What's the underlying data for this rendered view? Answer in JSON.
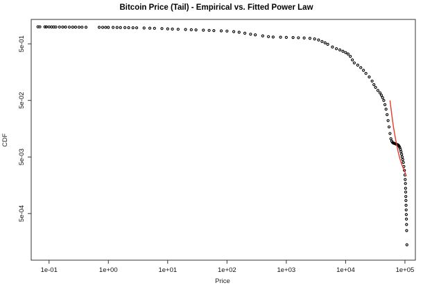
{
  "chart_data": {
    "type": "scatter",
    "title": "Bitcoin Price (Tail) - Empirical vs. Fitted Power Law",
    "xlabel": "Price",
    "ylabel": "CDF",
    "x_scale": "log",
    "y_scale": "log",
    "xlim": [
      0.05,
      150000
    ],
    "ylim": [
      7.5e-05,
      1.35
    ],
    "x_ticks": [
      {
        "value": 0.1,
        "label": "1e-01"
      },
      {
        "value": 1,
        "label": "1e+00"
      },
      {
        "value": 10,
        "label": "1e+01"
      },
      {
        "value": 100,
        "label": "1e+02"
      },
      {
        "value": 1000,
        "label": "1e+03"
      },
      {
        "value": 10000,
        "label": "1e+04"
      },
      {
        "value": 100000,
        "label": "1e+05"
      }
    ],
    "y_ticks": [
      {
        "value": 0.5,
        "label": "5e-01"
      },
      {
        "value": 0.05,
        "label": "5e-02"
      },
      {
        "value": 0.005,
        "label": "5e-03"
      },
      {
        "value": 0.0005,
        "label": "5e-04"
      }
    ],
    "grid": false,
    "series": [
      {
        "marker": "open-circle",
        "color": "#000000",
        "points": [
          [
            0.065,
            1.0
          ],
          [
            0.07,
            0.998
          ],
          [
            0.085,
            0.997
          ],
          [
            0.09,
            0.996
          ],
          [
            0.1,
            0.995
          ],
          [
            0.11,
            0.994
          ],
          [
            0.12,
            0.993
          ],
          [
            0.13,
            0.992
          ],
          [
            0.15,
            0.991
          ],
          [
            0.17,
            0.99
          ],
          [
            0.19,
            0.989
          ],
          [
            0.22,
            0.988
          ],
          [
            0.25,
            0.987
          ],
          [
            0.28,
            0.986
          ],
          [
            0.32,
            0.985
          ],
          [
            0.36,
            0.984
          ],
          [
            0.42,
            0.983
          ],
          [
            0.7,
            0.98
          ],
          [
            0.8,
            0.978
          ],
          [
            0.9,
            0.977
          ],
          [
            1.0,
            0.976
          ],
          [
            1.2,
            0.975
          ],
          [
            1.4,
            0.973
          ],
          [
            1.6,
            0.97
          ],
          [
            1.9,
            0.968
          ],
          [
            2.2,
            0.966
          ],
          [
            2.6,
            0.963
          ],
          [
            3.0,
            0.96
          ],
          [
            4.0,
            0.952
          ],
          [
            5.0,
            0.945
          ],
          [
            6.0,
            0.94
          ],
          [
            8.0,
            0.93
          ],
          [
            10.0,
            0.92
          ],
          [
            12.0,
            0.912
          ],
          [
            15.0,
            0.904
          ],
          [
            20.0,
            0.896
          ],
          [
            25.0,
            0.888
          ],
          [
            30.0,
            0.88
          ],
          [
            40.0,
            0.872
          ],
          [
            50.0,
            0.864
          ],
          [
            60.0,
            0.856
          ],
          [
            80.0,
            0.848
          ],
          [
            100.0,
            0.84
          ],
          [
            130.0,
            0.82
          ],
          [
            160.0,
            0.8
          ],
          [
            200.0,
            0.77
          ],
          [
            250.0,
            0.74
          ],
          [
            300.0,
            0.72
          ],
          [
            400.0,
            0.69
          ],
          [
            500.0,
            0.67
          ],
          [
            600.0,
            0.66
          ],
          [
            800.0,
            0.655
          ],
          [
            1000.0,
            0.65
          ],
          [
            1300.0,
            0.645
          ],
          [
            1600.0,
            0.64
          ],
          [
            2000.0,
            0.635
          ],
          [
            2500.0,
            0.625
          ],
          [
            3000.0,
            0.61
          ],
          [
            3500.0,
            0.585
          ],
          [
            4000.0,
            0.55
          ],
          [
            4500.0,
            0.52
          ],
          [
            5000.0,
            0.49
          ],
          [
            6000.0,
            0.44
          ],
          [
            7000.0,
            0.41
          ],
          [
            8000.0,
            0.39
          ],
          [
            9000.0,
            0.37
          ],
          [
            10000.0,
            0.35
          ],
          [
            11000.0,
            0.33
          ],
          [
            12000.0,
            0.3
          ],
          [
            13000.0,
            0.26
          ],
          [
            14000.0,
            0.23
          ],
          [
            16000.0,
            0.21
          ],
          [
            18000.0,
            0.19
          ],
          [
            20000.0,
            0.17
          ],
          [
            22000.0,
            0.15
          ],
          [
            25000.0,
            0.13
          ],
          [
            28000.0,
            0.11
          ],
          [
            30000.0,
            0.095
          ],
          [
            32000.0,
            0.085
          ],
          [
            35000.0,
            0.075
          ],
          [
            38000.0,
            0.068
          ],
          [
            40000.0,
            0.062
          ],
          [
            42000.0,
            0.056
          ],
          [
            44000.0,
            0.05
          ],
          [
            46000.0,
            0.042
          ],
          [
            48000.0,
            0.035
          ],
          [
            50000.0,
            0.028
          ],
          [
            52000.0,
            0.022
          ],
          [
            54000.0,
            0.017
          ],
          [
            56000.0,
            0.013
          ],
          [
            58000.0,
            0.0105
          ],
          [
            60000.0,
            0.0095
          ],
          [
            62000.0,
            0.009
          ],
          [
            64000.0,
            0.0088
          ],
          [
            66000.0,
            0.0087
          ],
          [
            68000.0,
            0.0086
          ],
          [
            70000.0,
            0.0085
          ],
          [
            72000.0,
            0.0084
          ],
          [
            74000.0,
            0.0083
          ],
          [
            76000.0,
            0.0082
          ],
          [
            78000.0,
            0.008
          ],
          [
            80000.0,
            0.0077
          ],
          [
            82000.0,
            0.0073
          ],
          [
            84000.0,
            0.0068
          ],
          [
            86000.0,
            0.0062
          ],
          [
            88000.0,
            0.0056
          ],
          [
            90000.0,
            0.005
          ],
          [
            92000.0,
            0.0045
          ],
          [
            94000.0,
            0.004
          ],
          [
            96000.0,
            0.0034
          ],
          [
            98000.0,
            0.0029
          ],
          [
            100000.0,
            0.0024
          ],
          [
            101000.0,
            0.002
          ],
          [
            102000.0,
            0.0017
          ],
          [
            102500.0,
            0.0014
          ],
          [
            103000.0,
            0.0012
          ],
          [
            103500.0,
            0.001
          ],
          [
            104000.0,
            0.00085
          ],
          [
            104500.0,
            0.0007
          ],
          [
            105000.0,
            0.00058
          ],
          [
            105500.0,
            0.00048
          ],
          [
            106000.0,
            0.0004
          ],
          [
            106500.0,
            0.00032
          ],
          [
            107000.0,
            0.00025
          ],
          [
            108000.0,
            0.00014
          ]
        ]
      },
      {
        "line": true,
        "color": "#e8382c",
        "points": [
          [
            56000.0,
            0.05
          ],
          [
            60000.0,
            0.028
          ],
          [
            64000.0,
            0.017
          ],
          [
            70000.0,
            0.01
          ],
          [
            76000.0,
            0.0065
          ],
          [
            82000.0,
            0.0047
          ],
          [
            90000.0,
            0.0035
          ],
          [
            100000.0,
            0.0027
          ],
          [
            106000.0,
            0.0023
          ]
        ]
      }
    ]
  }
}
